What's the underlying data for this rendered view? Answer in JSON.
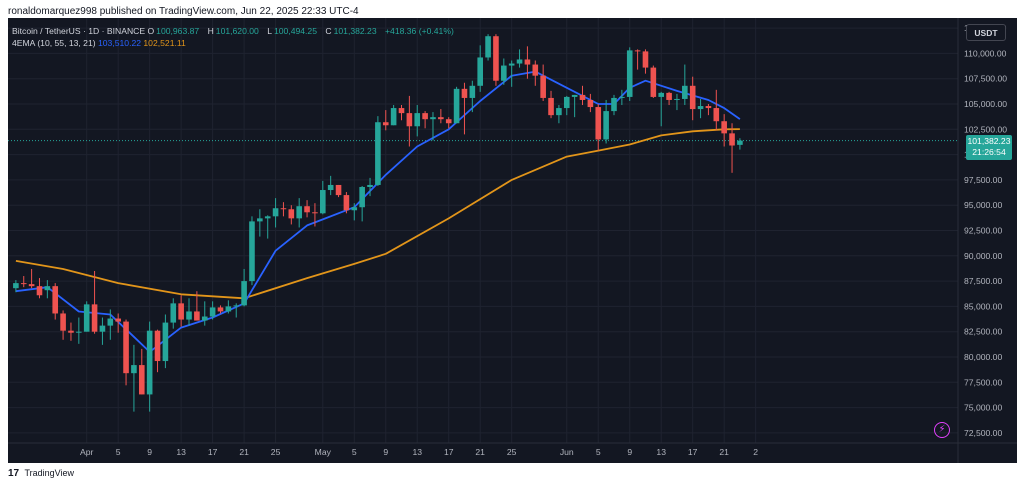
{
  "publisher": "ronaldomarquez998 published on TradingView.com, Jun 22, 2025 22:33 UTC-4",
  "footer": {
    "logo": "17",
    "brand": "TradingView"
  },
  "legend": {
    "symbol": "Bitcoin / TetherUS · 1D · BINANCE",
    "ohlc": [
      {
        "label": "O",
        "value": "100,963.87"
      },
      {
        "label": "H",
        "value": "101,620.00"
      },
      {
        "label": "L",
        "value": "100,494.25"
      },
      {
        "label": "C",
        "value": "101,382.23"
      }
    ],
    "change": "+418.36 (+0.41%)",
    "indicator": "4EMA (10, 55, 13, 21)",
    "ema_values": [
      "103,510.22",
      "102,521.11"
    ]
  },
  "currency": "USDT",
  "last_price": {
    "price": "101,382.23",
    "countdown": "21:26:54"
  },
  "colors": {
    "up": "#26a69a",
    "down": "#ef5350",
    "ema_fast": "#2962ff",
    "ema_slow": "#e2951a",
    "background": "#131722"
  },
  "icons": {
    "alert": "lightning-alert-icon"
  },
  "chart_data": {
    "type": "candlestick",
    "symbol": "BTC/USDT",
    "interval": "1D",
    "ylim": [
      71500,
      113500
    ],
    "y_ticks": [
      "72,500.00",
      "75,000.00",
      "77,500.00",
      "80,000.00",
      "82,500.00",
      "85,000.00",
      "87,500.00",
      "90,000.00",
      "92,500.00",
      "95,000.00",
      "97,500.00",
      "100,000.00",
      "102,500.00",
      "105,000.00",
      "107,500.00",
      "110,000.00",
      "112,500.00"
    ],
    "x_ticks": [
      {
        "label": "Apr",
        "date": "2025-04-01"
      },
      {
        "label": "5",
        "date": "2025-04-05"
      },
      {
        "label": "9",
        "date": "2025-04-09"
      },
      {
        "label": "13",
        "date": "2025-04-13"
      },
      {
        "label": "17",
        "date": "2025-04-17"
      },
      {
        "label": "21",
        "date": "2025-04-21"
      },
      {
        "label": "25",
        "date": "2025-04-25"
      },
      {
        "label": "May",
        "date": "2025-05-01"
      },
      {
        "label": "5",
        "date": "2025-05-05"
      },
      {
        "label": "9",
        "date": "2025-05-09"
      },
      {
        "label": "13",
        "date": "2025-05-13"
      },
      {
        "label": "17",
        "date": "2025-05-17"
      },
      {
        "label": "21",
        "date": "2025-05-21"
      },
      {
        "label": "25",
        "date": "2025-05-25"
      },
      {
        "label": "Jun",
        "date": "2025-06-01"
      },
      {
        "label": "5",
        "date": "2025-06-05"
      },
      {
        "label": "9",
        "date": "2025-06-09"
      },
      {
        "label": "13",
        "date": "2025-06-13"
      },
      {
        "label": "17",
        "date": "2025-06-17"
      },
      {
        "label": "21",
        "date": "2025-06-21"
      },
      {
        "label": "2",
        "date": "2025-06-25"
      }
    ],
    "candles": [
      {
        "date": "2025-03-23",
        "o": 86800,
        "h": 87600,
        "l": 86400,
        "c": 87300
      },
      {
        "date": "2025-03-24",
        "o": 87300,
        "h": 88000,
        "l": 86900,
        "c": 87200
      },
      {
        "date": "2025-03-25",
        "o": 87200,
        "h": 88700,
        "l": 86800,
        "c": 87000
      },
      {
        "date": "2025-03-26",
        "o": 87000,
        "h": 87800,
        "l": 85800,
        "c": 86100
      },
      {
        "date": "2025-03-27",
        "o": 86600,
        "h": 87600,
        "l": 85800,
        "c": 87000
      },
      {
        "date": "2025-03-28",
        "o": 87000,
        "h": 87300,
        "l": 83700,
        "c": 84300
      },
      {
        "date": "2025-03-29",
        "o": 84300,
        "h": 84600,
        "l": 81700,
        "c": 82600
      },
      {
        "date": "2025-03-30",
        "o": 82600,
        "h": 83400,
        "l": 81600,
        "c": 82400
      },
      {
        "date": "2025-03-31",
        "o": 82400,
        "h": 83900,
        "l": 81300,
        "c": 82500
      },
      {
        "date": "2025-04-01",
        "o": 82500,
        "h": 85500,
        "l": 82500,
        "c": 85200
      },
      {
        "date": "2025-04-02",
        "o": 85200,
        "h": 88500,
        "l": 82300,
        "c": 82500
      },
      {
        "date": "2025-04-03",
        "o": 82500,
        "h": 83900,
        "l": 81200,
        "c": 83100
      },
      {
        "date": "2025-04-04",
        "o": 83100,
        "h": 84700,
        "l": 81700,
        "c": 83800
      },
      {
        "date": "2025-04-05",
        "o": 83800,
        "h": 84300,
        "l": 82400,
        "c": 83500
      },
      {
        "date": "2025-04-06",
        "o": 83500,
        "h": 83700,
        "l": 77200,
        "c": 78400
      },
      {
        "date": "2025-04-07",
        "o": 78400,
        "h": 81200,
        "l": 74600,
        "c": 79200
      },
      {
        "date": "2025-04-08",
        "o": 79200,
        "h": 80800,
        "l": 76300,
        "c": 76300
      },
      {
        "date": "2025-04-09",
        "o": 76300,
        "h": 83500,
        "l": 74600,
        "c": 82600
      },
      {
        "date": "2025-04-10",
        "o": 82600,
        "h": 82700,
        "l": 78500,
        "c": 79600
      },
      {
        "date": "2025-04-11",
        "o": 79600,
        "h": 84200,
        "l": 78900,
        "c": 83400
      },
      {
        "date": "2025-04-12",
        "o": 83400,
        "h": 85800,
        "l": 82800,
        "c": 85300
      },
      {
        "date": "2025-04-13",
        "o": 85300,
        "h": 86100,
        "l": 83000,
        "c": 83700
      },
      {
        "date": "2025-04-14",
        "o": 83700,
        "h": 85800,
        "l": 83100,
        "c": 84500
      },
      {
        "date": "2025-04-15",
        "o": 84500,
        "h": 86500,
        "l": 83600,
        "c": 83600
      },
      {
        "date": "2025-04-16",
        "o": 83600,
        "h": 85500,
        "l": 83100,
        "c": 84000
      },
      {
        "date": "2025-04-17",
        "o": 84000,
        "h": 85500,
        "l": 83700,
        "c": 84900
      },
      {
        "date": "2025-04-18",
        "o": 84900,
        "h": 85100,
        "l": 84300,
        "c": 84500
      },
      {
        "date": "2025-04-19",
        "o": 84500,
        "h": 85600,
        "l": 84300,
        "c": 85000
      },
      {
        "date": "2025-04-20",
        "o": 85000,
        "h": 85300,
        "l": 83900,
        "c": 85100
      },
      {
        "date": "2025-04-21",
        "o": 85100,
        "h": 88700,
        "l": 85000,
        "c": 87500
      },
      {
        "date": "2025-04-22",
        "o": 87500,
        "h": 93900,
        "l": 87100,
        "c": 93400
      },
      {
        "date": "2025-04-23",
        "o": 93400,
        "h": 94600,
        "l": 91900,
        "c": 93700
      },
      {
        "date": "2025-04-24",
        "o": 93700,
        "h": 94000,
        "l": 91700,
        "c": 93900
      },
      {
        "date": "2025-04-25",
        "o": 93900,
        "h": 95700,
        "l": 92800,
        "c": 94700
      },
      {
        "date": "2025-04-26",
        "o": 94700,
        "h": 95300,
        "l": 93900,
        "c": 94600
      },
      {
        "date": "2025-04-27",
        "o": 94600,
        "h": 95000,
        "l": 93100,
        "c": 93700
      },
      {
        "date": "2025-04-28",
        "o": 93700,
        "h": 95700,
        "l": 92800,
        "c": 94900
      },
      {
        "date": "2025-04-29",
        "o": 94900,
        "h": 95500,
        "l": 93800,
        "c": 94300
      },
      {
        "date": "2025-04-30",
        "o": 94300,
        "h": 95200,
        "l": 92900,
        "c": 94200
      },
      {
        "date": "2025-05-01",
        "o": 94200,
        "h": 97400,
        "l": 94100,
        "c": 96500
      },
      {
        "date": "2025-05-02",
        "o": 96500,
        "h": 97900,
        "l": 96000,
        "c": 97000
      },
      {
        "date": "2025-05-03",
        "o": 97000,
        "h": 97000,
        "l": 95800,
        "c": 96000
      },
      {
        "date": "2025-05-04",
        "o": 96000,
        "h": 96300,
        "l": 94200,
        "c": 94500
      },
      {
        "date": "2025-05-05",
        "o": 94500,
        "h": 95200,
        "l": 93500,
        "c": 94800
      },
      {
        "date": "2025-05-06",
        "o": 94800,
        "h": 96900,
        "l": 93400,
        "c": 96800
      },
      {
        "date": "2025-05-07",
        "o": 96800,
        "h": 97700,
        "l": 95900,
        "c": 97000
      },
      {
        "date": "2025-05-08",
        "o": 97000,
        "h": 103800,
        "l": 96900,
        "c": 103200
      },
      {
        "date": "2025-05-09",
        "o": 103200,
        "h": 104400,
        "l": 102400,
        "c": 102900
      },
      {
        "date": "2025-05-10",
        "o": 102900,
        "h": 104900,
        "l": 102900,
        "c": 104600
      },
      {
        "date": "2025-05-11",
        "o": 104600,
        "h": 104900,
        "l": 103400,
        "c": 104100
      },
      {
        "date": "2025-05-12",
        "o": 104100,
        "h": 105800,
        "l": 100800,
        "c": 102800
      },
      {
        "date": "2025-05-13",
        "o": 102800,
        "h": 104900,
        "l": 101800,
        "c": 104100
      },
      {
        "date": "2025-05-14",
        "o": 104100,
        "h": 104300,
        "l": 102600,
        "c": 103500
      },
      {
        "date": "2025-05-15",
        "o": 103500,
        "h": 104200,
        "l": 101400,
        "c": 103700
      },
      {
        "date": "2025-05-16",
        "o": 103700,
        "h": 104500,
        "l": 103100,
        "c": 103500
      },
      {
        "date": "2025-05-17",
        "o": 103500,
        "h": 103700,
        "l": 102600,
        "c": 103100
      },
      {
        "date": "2025-05-18",
        "o": 103100,
        "h": 106700,
        "l": 103100,
        "c": 106500
      },
      {
        "date": "2025-05-19",
        "o": 106500,
        "h": 107100,
        "l": 102000,
        "c": 105600
      },
      {
        "date": "2025-05-20",
        "o": 105600,
        "h": 107300,
        "l": 104200,
        "c": 106800
      },
      {
        "date": "2025-05-21",
        "o": 106800,
        "h": 110800,
        "l": 106200,
        "c": 109600
      },
      {
        "date": "2025-05-22",
        "o": 109600,
        "h": 111900,
        "l": 109300,
        "c": 111700
      },
      {
        "date": "2025-05-23",
        "o": 111700,
        "h": 111900,
        "l": 106800,
        "c": 107300
      },
      {
        "date": "2025-05-24",
        "o": 107300,
        "h": 109500,
        "l": 106900,
        "c": 108800
      },
      {
        "date": "2025-05-25",
        "o": 108800,
        "h": 109300,
        "l": 106700,
        "c": 109000
      },
      {
        "date": "2025-05-26",
        "o": 109000,
        "h": 110400,
        "l": 108600,
        "c": 109400
      },
      {
        "date": "2025-05-27",
        "o": 109400,
        "h": 110700,
        "l": 107500,
        "c": 108900
      },
      {
        "date": "2025-05-28",
        "o": 108900,
        "h": 109300,
        "l": 106800,
        "c": 107800
      },
      {
        "date": "2025-05-29",
        "o": 107800,
        "h": 108900,
        "l": 105300,
        "c": 105600
      },
      {
        "date": "2025-05-30",
        "o": 105600,
        "h": 106300,
        "l": 103600,
        "c": 103900
      },
      {
        "date": "2025-05-31",
        "o": 103900,
        "h": 104900,
        "l": 103100,
        "c": 104600
      },
      {
        "date": "2025-06-01",
        "o": 104600,
        "h": 105800,
        "l": 103900,
        "c": 105700
      },
      {
        "date": "2025-06-02",
        "o": 105700,
        "h": 105900,
        "l": 103700,
        "c": 105900
      },
      {
        "date": "2025-06-03",
        "o": 105900,
        "h": 106800,
        "l": 104900,
        "c": 105400
      },
      {
        "date": "2025-06-04",
        "o": 105400,
        "h": 106000,
        "l": 104200,
        "c": 104700
      },
      {
        "date": "2025-06-05",
        "o": 104700,
        "h": 105000,
        "l": 100400,
        "c": 101500
      },
      {
        "date": "2025-06-06",
        "o": 101500,
        "h": 105400,
        "l": 101100,
        "c": 104300
      },
      {
        "date": "2025-06-07",
        "o": 104300,
        "h": 105900,
        "l": 103900,
        "c": 105600
      },
      {
        "date": "2025-06-08",
        "o": 105600,
        "h": 106400,
        "l": 104900,
        "c": 105700
      },
      {
        "date": "2025-06-09",
        "o": 105700,
        "h": 110600,
        "l": 105300,
        "c": 110300
      },
      {
        "date": "2025-06-10",
        "o": 110300,
        "h": 110400,
        "l": 108400,
        "c": 110200
      },
      {
        "date": "2025-06-11",
        "o": 110200,
        "h": 110400,
        "l": 108000,
        "c": 108600
      },
      {
        "date": "2025-06-12",
        "o": 108600,
        "h": 108800,
        "l": 105600,
        "c": 105700
      },
      {
        "date": "2025-06-13",
        "o": 105700,
        "h": 106200,
        "l": 102800,
        "c": 106100
      },
      {
        "date": "2025-06-14",
        "o": 106100,
        "h": 106200,
        "l": 104900,
        "c": 105400
      },
      {
        "date": "2025-06-15",
        "o": 105400,
        "h": 106000,
        "l": 104400,
        "c": 105500
      },
      {
        "date": "2025-06-16",
        "o": 105500,
        "h": 108900,
        "l": 104900,
        "c": 106800
      },
      {
        "date": "2025-06-17",
        "o": 106800,
        "h": 107700,
        "l": 103400,
        "c": 104500
      },
      {
        "date": "2025-06-18",
        "o": 104500,
        "h": 105500,
        "l": 103600,
        "c": 104800
      },
      {
        "date": "2025-06-19",
        "o": 104800,
        "h": 105000,
        "l": 103900,
        "c": 104600
      },
      {
        "date": "2025-06-20",
        "o": 104600,
        "h": 106400,
        "l": 102400,
        "c": 103300
      },
      {
        "date": "2025-06-21",
        "o": 103300,
        "h": 104000,
        "l": 100800,
        "c": 102100
      },
      {
        "date": "2025-06-22",
        "o": 102100,
        "h": 103100,
        "l": 98200,
        "c": 100900
      },
      {
        "date": "2025-06-23",
        "o": 100963.87,
        "h": 101620,
        "l": 100494.25,
        "c": 101382.23
      }
    ],
    "ema_fast": [
      [
        "2025-03-23",
        86500
      ],
      [
        "2025-03-27",
        86900
      ],
      [
        "2025-03-31",
        84500
      ],
      [
        "2025-04-04",
        84200
      ],
      [
        "2025-04-07",
        82000
      ],
      [
        "2025-04-09",
        80500
      ],
      [
        "2025-04-13",
        82900
      ],
      [
        "2025-04-17",
        83900
      ],
      [
        "2025-04-21",
        85300
      ],
      [
        "2025-04-25",
        90500
      ],
      [
        "2025-04-29",
        93000
      ],
      [
        "2025-05-01",
        93600
      ],
      [
        "2025-05-05",
        94800
      ],
      [
        "2025-05-09",
        98000
      ],
      [
        "2025-05-13",
        100800
      ],
      [
        "2025-05-17",
        102500
      ],
      [
        "2025-05-21",
        105300
      ],
      [
        "2025-05-25",
        107800
      ],
      [
        "2025-05-28",
        108200
      ],
      [
        "2025-06-01",
        106600
      ],
      [
        "2025-06-05",
        105000
      ],
      [
        "2025-06-07",
        105000
      ],
      [
        "2025-06-09",
        106600
      ],
      [
        "2025-06-11",
        107300
      ],
      [
        "2025-06-15",
        106300
      ],
      [
        "2025-06-19",
        105400
      ],
      [
        "2025-06-21",
        104600
      ],
      [
        "2025-06-23",
        103510
      ]
    ],
    "ema_slow": [
      [
        "2025-03-23",
        89500
      ],
      [
        "2025-03-29",
        88700
      ],
      [
        "2025-04-05",
        87300
      ],
      [
        "2025-04-13",
        86200
      ],
      [
        "2025-04-21",
        85800
      ],
      [
        "2025-04-29",
        87800
      ],
      [
        "2025-05-05",
        89200
      ],
      [
        "2025-05-09",
        90200
      ],
      [
        "2025-05-17",
        93700
      ],
      [
        "2025-05-25",
        97500
      ],
      [
        "2025-06-01",
        99800
      ],
      [
        "2025-06-05",
        100400
      ],
      [
        "2025-06-09",
        101000
      ],
      [
        "2025-06-13",
        101900
      ],
      [
        "2025-06-17",
        102300
      ],
      [
        "2025-06-21",
        102500
      ],
      [
        "2025-06-23",
        102521
      ]
    ]
  }
}
